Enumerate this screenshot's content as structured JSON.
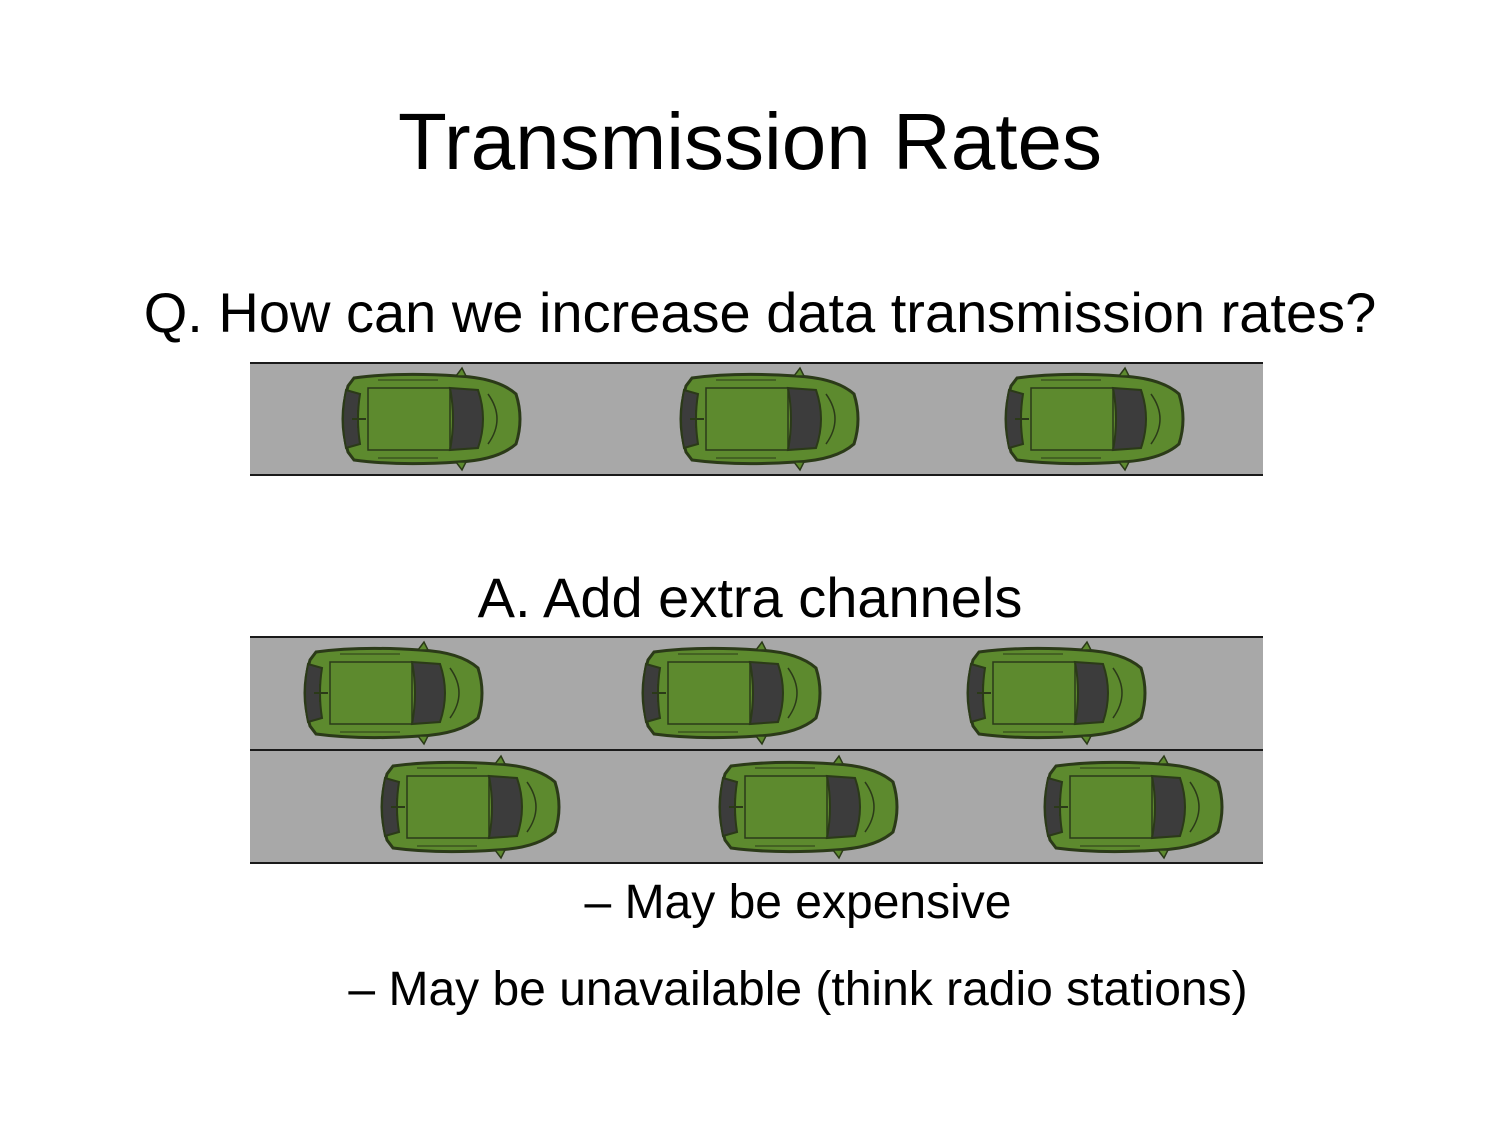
{
  "slide": {
    "title": "Transmission Rates",
    "question": "Q. How can we increase data transmission rates?",
    "answer": "A.  Add extra channels",
    "bullets": [
      "– May be expensive",
      "– May be unavailable (think radio stations)"
    ]
  },
  "diagrams": {
    "single_channel": {
      "lanes": 1,
      "cars_per_lane": 3
    },
    "multi_channel": {
      "lanes": 2,
      "cars_per_lane": 3
    }
  },
  "colors": {
    "road": "#a8a8a8",
    "lane_line": "#1a1a1a",
    "car_body": "#5d8a2e",
    "car_outline": "#2b3a18",
    "car_window": "#3c3c3c",
    "background": "#ffffff",
    "text": "#000000"
  }
}
